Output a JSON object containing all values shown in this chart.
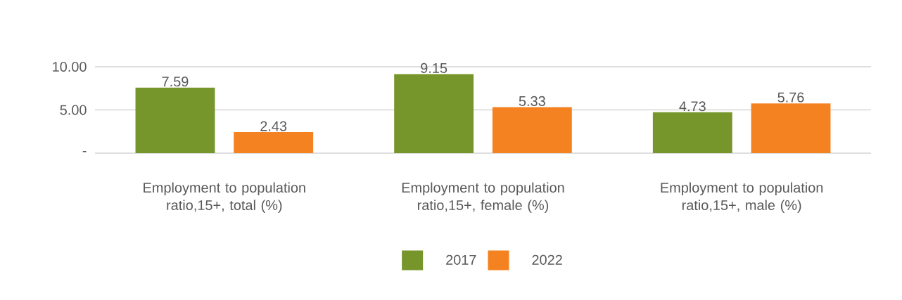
{
  "chart_data": {
    "type": "bar",
    "categories": [
      "Employment to population ratio,15+, total (%)",
      "Employment to population ratio,15+, female (%)",
      "Employment to population ratio,15+, male (%)"
    ],
    "series": [
      {
        "name": "2017",
        "color": "#76952a",
        "values": [
          7.59,
          9.15,
          4.73
        ]
      },
      {
        "name": "2022",
        "color": "#f58220",
        "values": [
          2.43,
          5.33,
          5.76
        ]
      }
    ],
    "ylim": [
      0,
      10
    ],
    "yticks": [
      {
        "value": 0,
        "label": "-"
      },
      {
        "value": 5,
        "label": "5.00"
      },
      {
        "value": 10,
        "label": "10.00"
      }
    ],
    "grid": "y",
    "legend": "bottom",
    "data_labels": true
  }
}
